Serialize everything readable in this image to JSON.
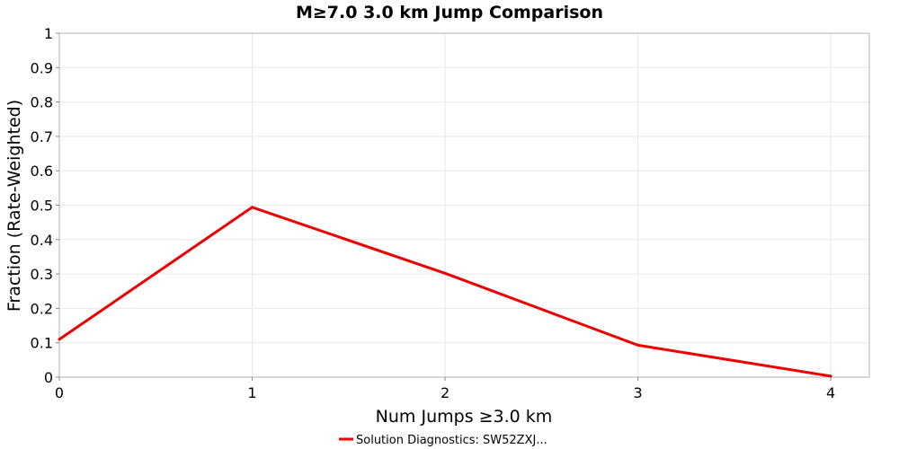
{
  "chart_data": {
    "type": "line",
    "title": "M≥7.0 3.0 km Jump Comparison",
    "xlabel": "Num Jumps ≥3.0 km",
    "ylabel": "Fraction (Rate-Weighted)",
    "xlim": [
      0,
      4.2
    ],
    "ylim": [
      0,
      1
    ],
    "x_ticks": [
      "0",
      "1",
      "2",
      "3",
      "4"
    ],
    "y_ticks": [
      "0",
      "0.1",
      "0.2",
      "0.3",
      "0.4",
      "0.5",
      "0.6",
      "0.7",
      "0.8",
      "0.9",
      "1"
    ],
    "grid": true,
    "legend_position": "bottom-center",
    "series": [
      {
        "name": "Solution Diagnostics: SW52ZXJ...",
        "color": "#ee0000",
        "x": [
          0,
          1,
          2,
          3,
          4
        ],
        "y": [
          0.11,
          0.494,
          0.302,
          0.093,
          0.003
        ]
      }
    ]
  }
}
